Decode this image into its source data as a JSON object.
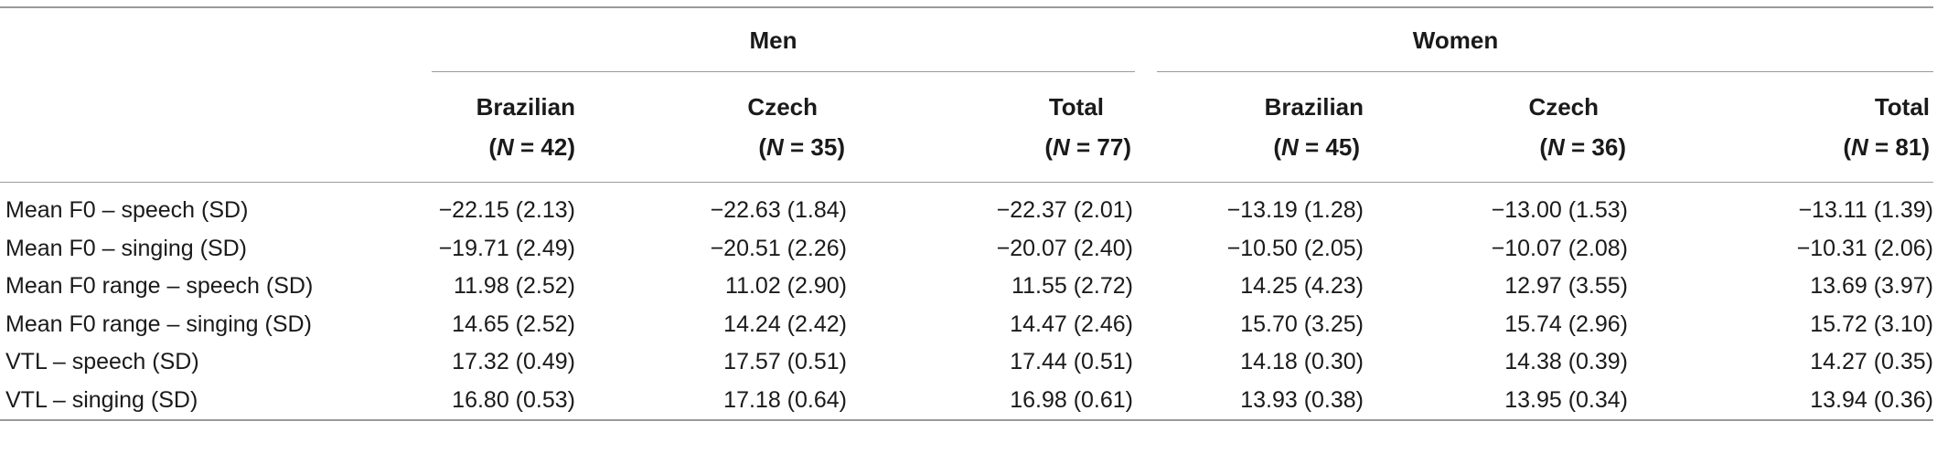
{
  "groups": {
    "men": "Men",
    "women": "Women"
  },
  "columns": [
    {
      "name": "Brazilian",
      "n_label": "N",
      "n_value": "= 42"
    },
    {
      "name": "Czech",
      "n_label": "N",
      "n_value": "= 35"
    },
    {
      "name": "Total",
      "n_label": "N",
      "n_value": "= 77"
    },
    {
      "name": "Brazilian",
      "n_label": "N",
      "n_value": "= 45"
    },
    {
      "name": "Czech",
      "n_label": "N",
      "n_value": "= 36"
    },
    {
      "name": "Total",
      "n_label": "N",
      "n_value": "= 81"
    }
  ],
  "rows": [
    {
      "label": "Mean F0 – speech (SD)",
      "values": [
        "−22.15 (2.13)",
        "−22.63 (1.84)",
        "−22.37 (2.01)",
        "−13.19 (1.28)",
        "−13.00 (1.53)",
        "−13.11 (1.39)"
      ]
    },
    {
      "label": "Mean F0 – singing (SD)",
      "values": [
        "−19.71 (2.49)",
        "−20.51 (2.26)",
        "−20.07 (2.40)",
        "−10.50 (2.05)",
        "−10.07 (2.08)",
        "−10.31 (2.06)"
      ]
    },
    {
      "label": "Mean F0 range – speech (SD)",
      "values": [
        "11.98 (2.52)",
        "11.02 (2.90)",
        "11.55 (2.72)",
        "14.25 (4.23)",
        "12.97 (3.55)",
        "13.69 (3.97)"
      ]
    },
    {
      "label": "Mean F0 range – singing (SD)",
      "values": [
        "14.65 (2.52)",
        "14.24 (2.42)",
        "14.47 (2.46)",
        "15.70 (3.25)",
        "15.74 (2.96)",
        "15.72 (3.10)"
      ]
    },
    {
      "label": "VTL – speech (SD)",
      "values": [
        "17.32 (0.49)",
        "17.57 (0.51)",
        "17.44 (0.51)",
        "14.18 (0.30)",
        "14.38 (0.39)",
        "14.27 (0.35)"
      ]
    },
    {
      "label": "VTL – singing (SD)",
      "values": [
        "16.80 (0.53)",
        "17.18 (0.64)",
        "16.98 (0.61)",
        "13.93 (0.38)",
        "13.95 (0.34)",
        "13.94 (0.36)"
      ]
    }
  ]
}
